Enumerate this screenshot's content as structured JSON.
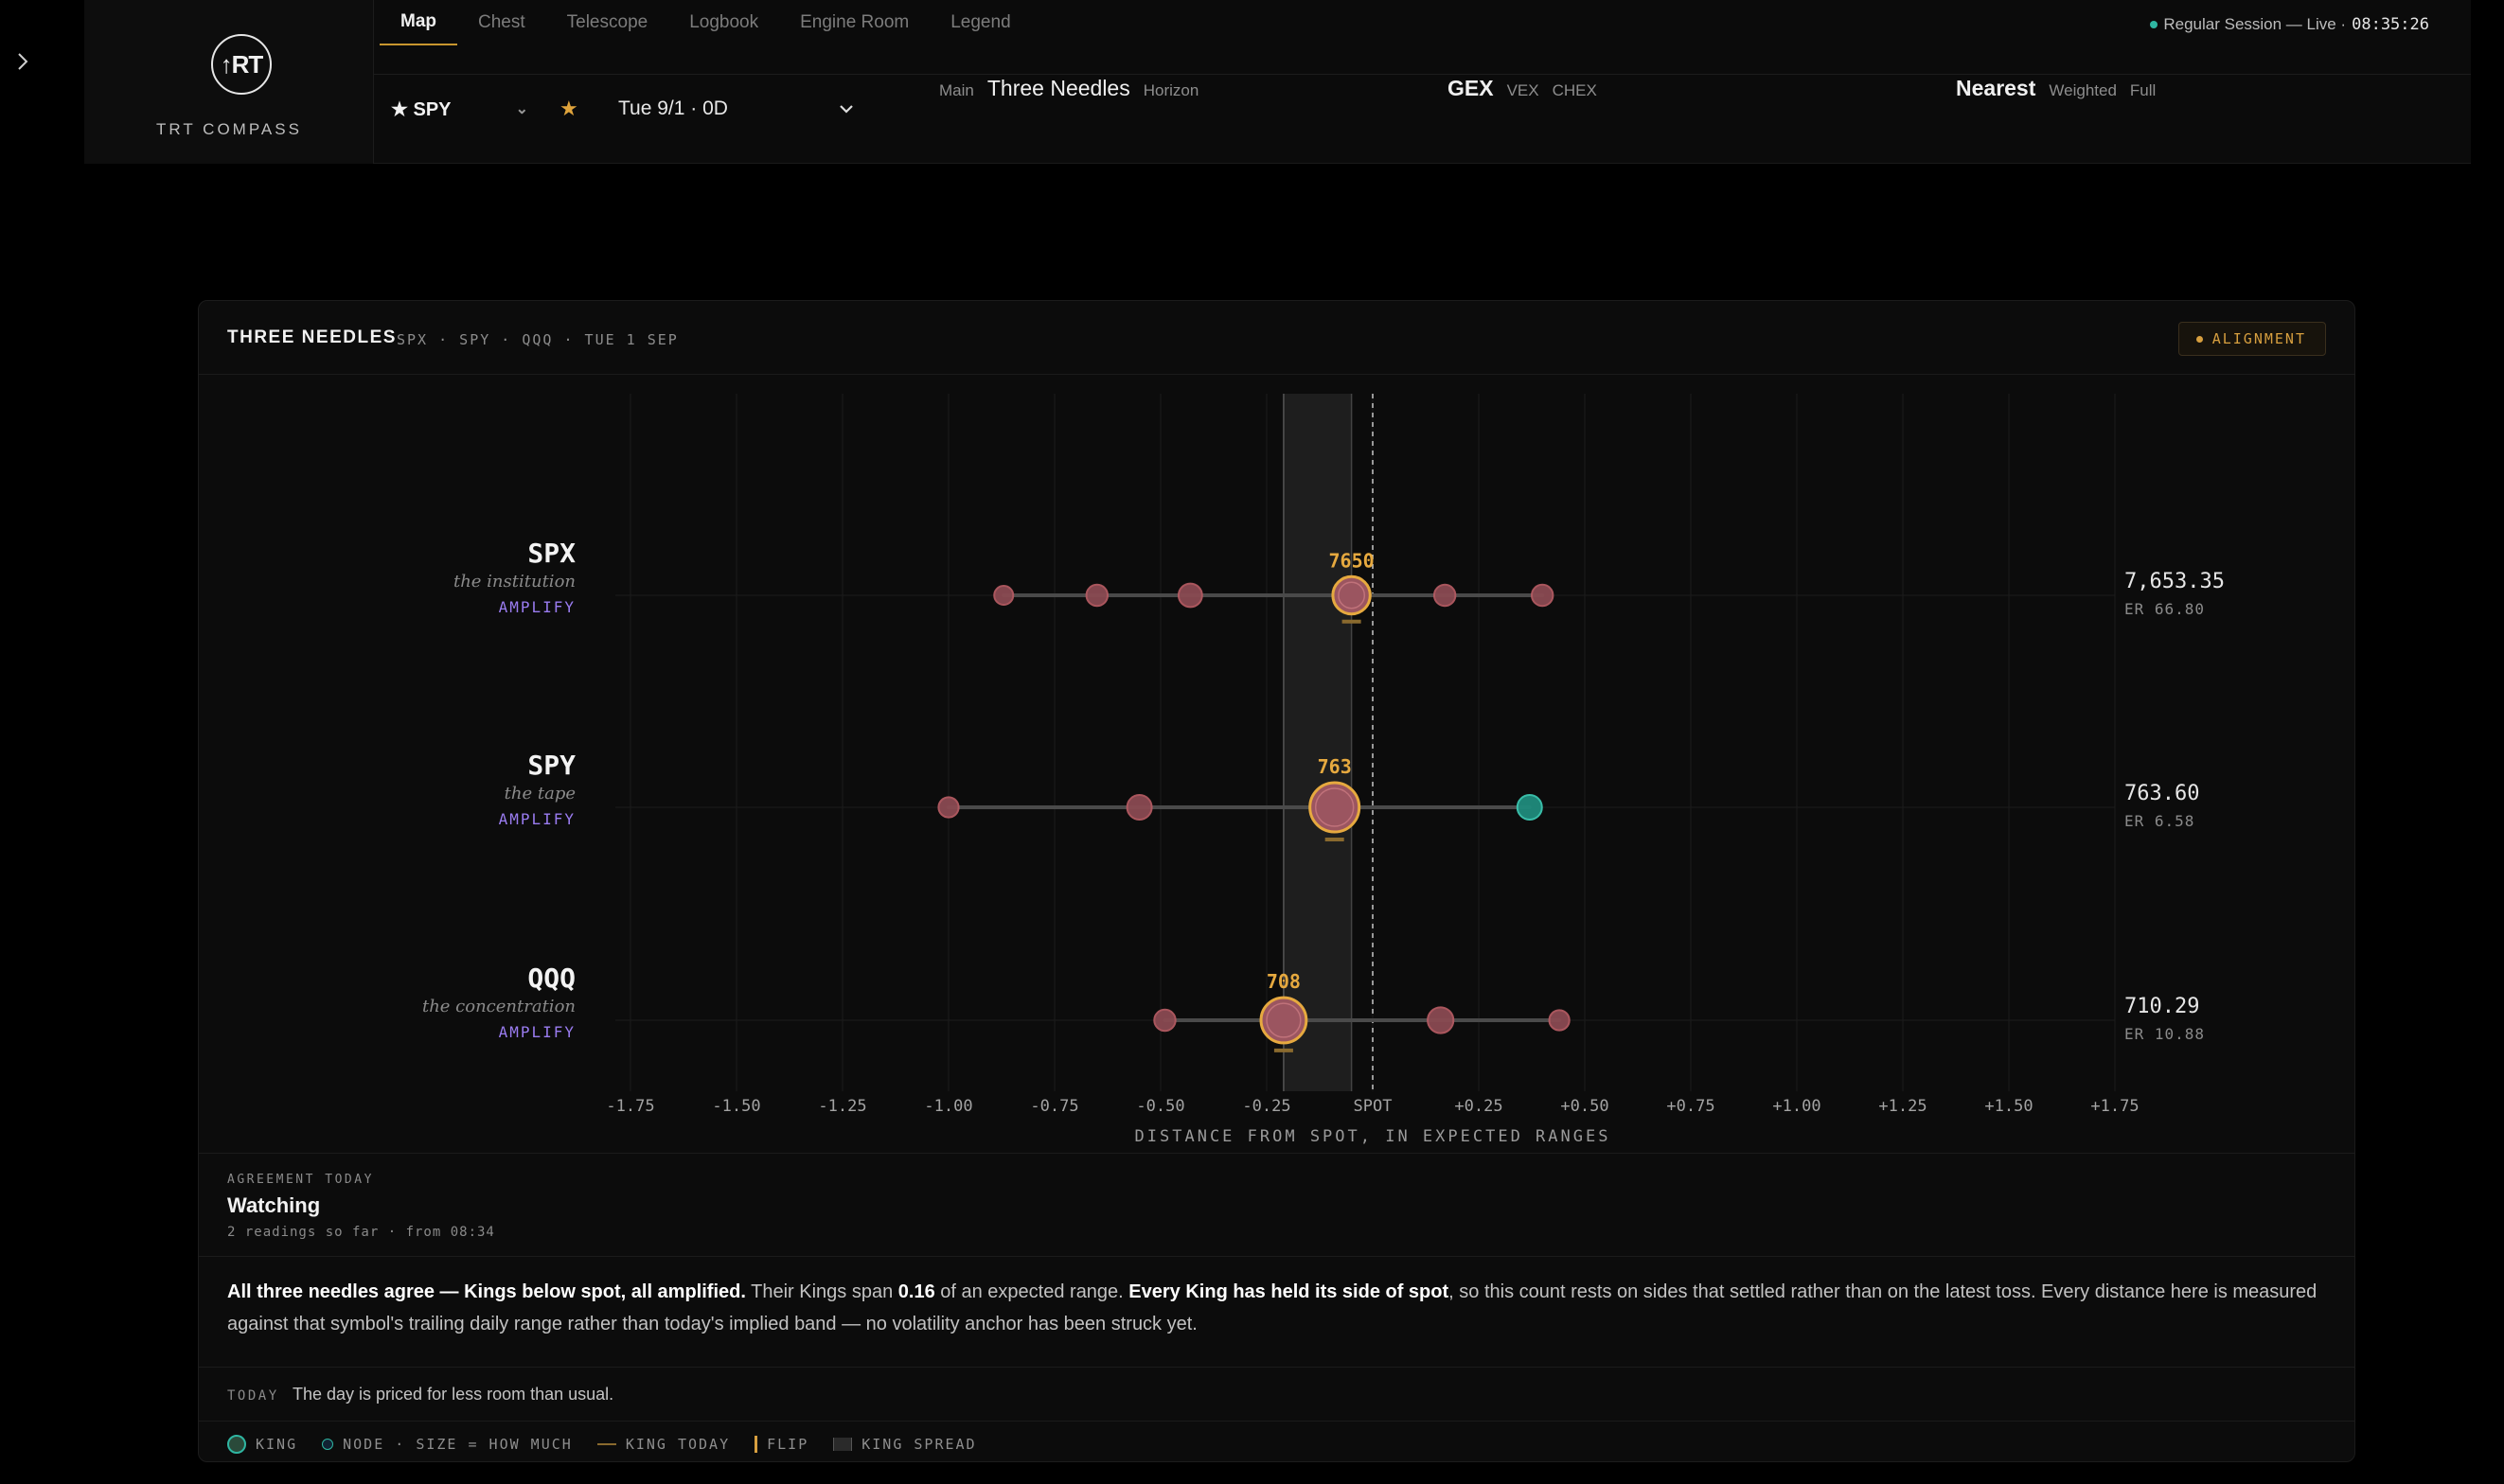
{
  "brand": {
    "logo_text": "↑RT",
    "name": "TRT COMPASS"
  },
  "tabs": [
    {
      "label": "Map",
      "active": true
    },
    {
      "label": "Chest"
    },
    {
      "label": "Telescope"
    },
    {
      "label": "Logbook"
    },
    {
      "label": "Engine Room"
    },
    {
      "label": "Legend"
    }
  ],
  "session": {
    "status": "Regular Session — Live ·",
    "time": "08:35:26",
    "dot_color": "#2fb6a2"
  },
  "controls": {
    "symbol": "★ SPY",
    "date": "Tue 9/1 · 0D",
    "view": {
      "left": "Main",
      "selected": "Three Needles",
      "right": "Horizon"
    },
    "greek": {
      "selected": "GEX",
      "opt1": "VEX",
      "opt2": "CHEX"
    },
    "scope": {
      "selected": "Nearest",
      "opt1": "Weighted",
      "opt2": "Full"
    }
  },
  "panel": {
    "title": "THREE NEEDLES",
    "subtitle": "SPX · SPY · QQQ  ·  TUE 1 SEP",
    "badge": "ALIGNMENT"
  },
  "chart_data": {
    "type": "scatter",
    "xlabel": "DISTANCE FROM SPOT, IN EXPECTED RANGES",
    "xlim": [
      -1.75,
      1.75
    ],
    "xticks": [
      "-1.75",
      "-1.50",
      "-1.25",
      "-1.00",
      "-0.75",
      "-0.50",
      "-0.25",
      "SPOT",
      "+0.25",
      "+0.50",
      "+0.75",
      "+1.00",
      "+1.25",
      "+1.50",
      "+1.75"
    ],
    "king_spread": [
      -0.21,
      -0.05
    ],
    "rows": [
      {
        "symbol": "SPX",
        "desc": "the institution",
        "mode": "AMPLIFY",
        "price": "7,653.35",
        "er": "ER 66.80",
        "king": {
          "x": -0.05,
          "label": "7650",
          "size": 0.55
        },
        "nodes": [
          {
            "x": -0.87,
            "size": 0.25
          },
          {
            "x": -0.65,
            "size": 0.35
          },
          {
            "x": -0.43,
            "size": 0.45
          },
          {
            "x": 0.17,
            "size": 0.35
          },
          {
            "x": 0.4,
            "size": 0.35
          }
        ]
      },
      {
        "symbol": "SPY",
        "desc": "the tape",
        "mode": "AMPLIFY",
        "price": "763.60",
        "er": "ER 6.58",
        "king": {
          "x": -0.09,
          "label": "763",
          "size": 1.0
        },
        "nodes": [
          {
            "x": -1.0,
            "size": 0.3
          },
          {
            "x": -0.55,
            "size": 0.5
          },
          {
            "x": 0.37,
            "size": 0.5,
            "positive": true
          }
        ]
      },
      {
        "symbol": "QQQ",
        "desc": "the concentration",
        "mode": "AMPLIFY",
        "price": "710.29",
        "er": "ER 10.88",
        "king": {
          "x": -0.21,
          "label": "708",
          "size": 0.85
        },
        "nodes": [
          {
            "x": -0.49,
            "size": 0.35
          },
          {
            "x": 0.16,
            "size": 0.55
          },
          {
            "x": 0.44,
            "size": 0.3
          }
        ]
      }
    ]
  },
  "agreement": {
    "kicker": "AGREEMENT TODAY",
    "state": "Watching",
    "meta": "2 readings so far · from 08:34"
  },
  "summary": {
    "b1": "All three needles agree — Kings below spot, all amplified.",
    "t1": " Their Kings span ",
    "b2": "0.16",
    "t2": " of an expected range. ",
    "b3": "Every King has held its side of spot",
    "t3": ", so this count rests on sides that settled rather than on the latest toss. Every distance here is measured against that symbol's trailing daily range rather than today's implied band — no volatility anchor has been struck yet."
  },
  "today": {
    "kicker": "TODAY",
    "text": "The day is priced for less room than usual."
  },
  "legend": {
    "king": "KING",
    "node": "NODE · SIZE = HOW MUCH",
    "king_today": "KING TODAY",
    "flip": "FLIP",
    "spread": "KING SPREAD"
  },
  "colors": {
    "accent": "#e6a93f",
    "node_negative": "#b35a62",
    "node_positive": "#2fb6a2",
    "mode": "#9a7cf0"
  }
}
